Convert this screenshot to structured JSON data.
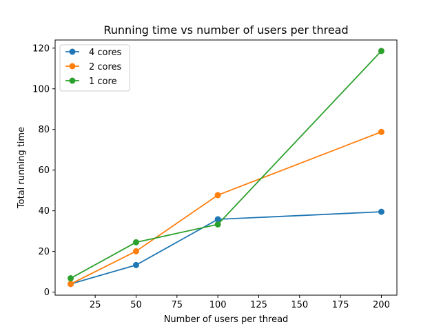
{
  "chart_data": {
    "type": "line",
    "title": "Running time vs number of users per thread",
    "xlabel": "Number of users per thread",
    "ylabel": "Total running time",
    "xlim": [
      0.5,
      209.5
    ],
    "ylim": [
      -1.5,
      124
    ],
    "xticks": [
      25,
      50,
      75,
      100,
      125,
      150,
      175,
      200
    ],
    "yticks": [
      0,
      20,
      40,
      60,
      80,
      100,
      120
    ],
    "grid": false,
    "legend_position": "top-left",
    "x": [
      10,
      50,
      100,
      200
    ],
    "series": [
      {
        "name": "4 cores",
        "color": "#1f77b4",
        "values": [
          4.0,
          13.3,
          35.8,
          39.5
        ]
      },
      {
        "name": "2 cores",
        "color": "#ff7f0e",
        "values": [
          4.0,
          20.1,
          47.7,
          78.8
        ]
      },
      {
        "name": "1 core",
        "color": "#2ca02c",
        "values": [
          6.8,
          24.5,
          33.3,
          118.6
        ]
      }
    ]
  }
}
